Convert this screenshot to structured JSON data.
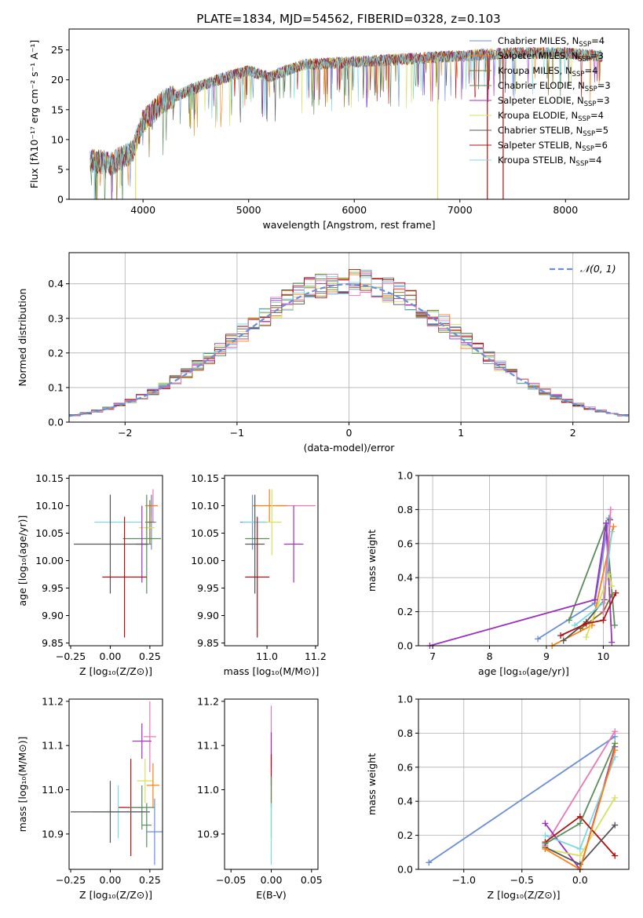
{
  "title": "PLATE=1834, MJD=54562, FIBERID=0328, z=0.103",
  "colors": {
    "cm": "#6b8fd6",
    "sm": "#ff7f0e",
    "km": "#8c6d1f",
    "ce": "#5b8c5b",
    "se": "#9b30c0",
    "ke": "#d8e060",
    "cs": "#555555",
    "ss": "#b01010",
    "ks": "#7dd8e0",
    "pink": "#e878b8",
    "gaussian": "#6b8fd6"
  },
  "chart_data": [
    {
      "id": "spectrum",
      "type": "line",
      "title": "PLATE=1834, MJD=54562, FIBERID=0328, z=0.103",
      "xlabel": "wavelength [Angstrom, rest frame]",
      "ylabel": "Flux [fλ10⁻¹⁷ erg cm⁻² s⁻¹ A⁻¹]",
      "xlim": [
        3300,
        8600
      ],
      "ylim": [
        0,
        28.5
      ],
      "xticks": [
        4000,
        5000,
        6000,
        7000,
        8000
      ],
      "yticks": [
        0,
        5,
        10,
        15,
        20,
        25
      ],
      "legend_position": "upper-right",
      "legend": [
        {
          "label": "Chabrier MILES, N",
          "sub": "SSP",
          "suffix": "=4",
          "color": "cm"
        },
        {
          "label": "Salpeter MILES, N",
          "sub": "SSP",
          "suffix": "=3",
          "color": "sm"
        },
        {
          "label": "Kroupa MILES, N",
          "sub": "SSP",
          "suffix": "=4",
          "color": "km"
        },
        {
          "label": "Chabrier ELODIE, N",
          "sub": "SSP",
          "suffix": "=3",
          "color": "ce"
        },
        {
          "label": "Salpeter ELODIE, N",
          "sub": "SSP",
          "suffix": "=3",
          "color": "se"
        },
        {
          "label": "Kroupa ELODIE, N",
          "sub": "SSP",
          "suffix": "=4",
          "color": "ke"
        },
        {
          "label": "Chabrier STELIB, N",
          "sub": "SSP",
          "suffix": "=5",
          "color": "cs"
        },
        {
          "label": "Salpeter STELIB, N",
          "sub": "SSP",
          "suffix": "=6",
          "color": "ss"
        },
        {
          "label": "Kroupa STELIB, N",
          "sub": "SSP",
          "suffix": "=4",
          "color": "ks"
        }
      ],
      "continuum": [
        [
          3500,
          6.5
        ],
        [
          3700,
          6.0
        ],
        [
          3900,
          8.0
        ],
        [
          4000,
          13.0
        ],
        [
          4200,
          16.5
        ],
        [
          4400,
          18.0
        ],
        [
          4700,
          20.0
        ],
        [
          5000,
          21.5
        ],
        [
          5200,
          20.5
        ],
        [
          5500,
          22.5
        ],
        [
          6000,
          23.0
        ],
        [
          6500,
          23.5
        ],
        [
          7000,
          24.0
        ],
        [
          7500,
          24.5
        ],
        [
          8000,
          24.5
        ],
        [
          8300,
          24.0
        ]
      ],
      "dropouts": [
        {
          "x": 3540,
          "color": "ks"
        },
        {
          "x": 3560,
          "color": "ce"
        },
        {
          "x": 3930,
          "color": "ke"
        },
        {
          "x": 6790,
          "color": "ke"
        },
        {
          "x": 7260,
          "color": "ss"
        },
        {
          "x": 7410,
          "color": "ss"
        }
      ]
    },
    {
      "id": "residuals",
      "type": "bar",
      "xlabel": "(data-model)/error",
      "ylabel": "Normed distribution",
      "xlim": [
        -2.5,
        2.5
      ],
      "ylim": [
        0,
        0.49
      ],
      "xticks": [
        -2,
        -1,
        0,
        1,
        2
      ],
      "yticks": [
        0.0,
        0.1,
        0.2,
        0.3,
        0.4
      ],
      "bin_width": 0.1,
      "legend": {
        "label": "𝒩(0, 1)",
        "position": "upper-right"
      }
    },
    {
      "id": "age-vs-z",
      "type": "scatter",
      "xlabel": "Z [log₁₀(Z/Z⊙)]",
      "ylabel": "age  [log₁₀(age/yr)]",
      "xlim": [
        -0.26,
        0.33
      ],
      "ylim": [
        9.845,
        10.155
      ],
      "xticks": [
        -0.25,
        0.0,
        0.25
      ],
      "xtick_labels": [
        "−0.25",
        "0.00",
        "0.25"
      ],
      "yticks": [
        9.85,
        9.9,
        9.95,
        10.0,
        10.05,
        10.1,
        10.15
      ],
      "points": [
        {
          "x": 0.27,
          "y": 10.1,
          "xe": 0.03,
          "ye": 0.03,
          "color": "pink"
        },
        {
          "x": 0.26,
          "y": 10.1,
          "xe": 0.04,
          "ye": 0.02,
          "color": "sm"
        },
        {
          "x": 0.26,
          "y": 10.07,
          "xe": 0.03,
          "ye": 0.05,
          "color": "cm"
        },
        {
          "x": 0.25,
          "y": 10.07,
          "xe": 0.03,
          "ye": 0.04,
          "color": "km"
        },
        {
          "x": 0.23,
          "y": 10.06,
          "xe": 0.05,
          "ye": 0.04,
          "color": "ke"
        },
        {
          "x": 0.05,
          "y": 10.07,
          "xe": 0.15,
          "ye": 0.0,
          "color": "ks"
        },
        {
          "x": 0.2,
          "y": 10.04,
          "xe": 0.12,
          "ye": 0.0,
          "color": "ce"
        },
        {
          "x": 0.23,
          "y": 10.03,
          "xe": 0.03,
          "ye": 0.09,
          "color": "ce"
        },
        {
          "x": 0.2,
          "y": 10.03,
          "xe": 0.04,
          "ye": 0.07,
          "color": "se"
        },
        {
          "x": 0.0,
          "y": 10.03,
          "xe": 0.23,
          "ye": 0.09,
          "color": "cs"
        },
        {
          "x": 0.09,
          "y": 9.97,
          "xe": 0.14,
          "ye": 0.11,
          "color": "ss"
        }
      ]
    },
    {
      "id": "age-vs-mass",
      "type": "scatter",
      "xlabel": "mass [log₁₀(M/M⊙)]",
      "ylabel": "",
      "xlim": [
        10.825,
        11.21
      ],
      "ylim": [
        9.845,
        10.155
      ],
      "xticks": [
        11.0,
        11.2
      ],
      "xtick_labels": [
        "11.0",
        "11.2"
      ],
      "yticks": [
        9.85,
        9.9,
        9.95,
        10.0,
        10.05,
        10.1,
        10.15
      ],
      "points": [
        {
          "x": 11.12,
          "y": 10.1,
          "xe": 0.08,
          "ye": 0.0,
          "color": "pink"
        },
        {
          "x": 11.01,
          "y": 10.1,
          "xe": 0.07,
          "ye": 0.03,
          "color": "sm"
        },
        {
          "x": 10.94,
          "y": 10.07,
          "xe": 0.05,
          "ye": 0.05,
          "color": "cm"
        },
        {
          "x": 11.02,
          "y": 10.07,
          "xe": 0.04,
          "ye": 0.06,
          "color": "ke"
        },
        {
          "x": 10.95,
          "y": 10.07,
          "xe": 0.05,
          "ye": 0.01,
          "color": "ks"
        },
        {
          "x": 10.96,
          "y": 10.04,
          "xe": 0.05,
          "ye": 0.0,
          "color": "ce"
        },
        {
          "x": 11.11,
          "y": 10.03,
          "xe": 0.04,
          "ye": 0.07,
          "color": "se"
        },
        {
          "x": 10.95,
          "y": 10.03,
          "xe": 0.04,
          "ye": 0.09,
          "color": "cs"
        },
        {
          "x": 10.96,
          "y": 9.97,
          "xe": 0.05,
          "ye": 0.11,
          "color": "ss"
        }
      ]
    },
    {
      "id": "weight-vs-age",
      "type": "line",
      "xlabel": "age  [log₁₀(age/yr)]",
      "ylabel": "mass weight",
      "xlim": [
        6.75,
        10.45
      ],
      "ylim": [
        0,
        1.0
      ],
      "xticks": [
        7,
        8,
        9,
        10
      ],
      "yticks": [
        0.0,
        0.2,
        0.4,
        0.6,
        0.8,
        1.0
      ],
      "series": [
        {
          "color": "cm",
          "x": [
            8.85,
            9.85,
            10.1
          ],
          "y": [
            0.04,
            0.25,
            0.75
          ]
        },
        {
          "color": "sm",
          "x": [
            9.1,
            9.8,
            10.18
          ],
          "y": [
            0.0,
            0.12,
            0.7
          ]
        },
        {
          "color": "km",
          "x": [
            9.6,
            10.0,
            10.15
          ],
          "y": [
            0.1,
            0.2,
            0.3
          ]
        },
        {
          "color": "ce",
          "x": [
            9.4,
            10.05,
            10.2
          ],
          "y": [
            0.15,
            0.72,
            0.12
          ]
        },
        {
          "color": "se",
          "x": [
            6.95,
            9.85,
            10.05,
            10.15
          ],
          "y": [
            0.0,
            0.27,
            0.72,
            0.02
          ]
        },
        {
          "color": "ke",
          "x": [
            9.7,
            10.1,
            10.15
          ],
          "y": [
            0.05,
            0.42,
            0.35
          ]
        },
        {
          "color": "cs",
          "x": [
            9.3,
            9.7,
            10.02,
            10.12
          ],
          "y": [
            0.03,
            0.14,
            0.27,
            0.74
          ]
        },
        {
          "color": "ss",
          "x": [
            9.25,
            9.7,
            10.0,
            10.22
          ],
          "y": [
            0.06,
            0.13,
            0.15,
            0.31
          ]
        },
        {
          "color": "ks",
          "x": [
            9.5,
            10.0,
            10.15
          ],
          "y": [
            0.12,
            0.25,
            0.67
          ]
        },
        {
          "color": "pink",
          "x": [
            10.0,
            10.13
          ],
          "y": [
            0.2,
            0.8
          ]
        }
      ]
    },
    {
      "id": "mass-vs-z",
      "type": "scatter",
      "xlabel": "Z [log₁₀(Z/Z⊙)]",
      "ylabel": "mass [log₁₀(M/M⊙)]",
      "xlim": [
        -0.26,
        0.33
      ],
      "ylim": [
        10.82,
        11.205
      ],
      "xticks": [
        -0.25,
        0.0,
        0.25
      ],
      "xtick_labels": [
        "−0.25",
        "0.00",
        "0.25"
      ],
      "yticks": [
        10.9,
        11.0,
        11.1,
        11.2
      ],
      "points": [
        {
          "x": 0.25,
          "y": 11.12,
          "xe": 0.04,
          "ye": 0.08,
          "color": "pink"
        },
        {
          "x": 0.2,
          "y": 11.11,
          "xe": 0.06,
          "ye": 0.04,
          "color": "se"
        },
        {
          "x": 0.22,
          "y": 11.02,
          "xe": 0.05,
          "ye": 0.05,
          "color": "ke"
        },
        {
          "x": 0.27,
          "y": 11.01,
          "xe": 0.04,
          "ye": 0.05,
          "color": "sm"
        },
        {
          "x": 0.13,
          "y": 10.96,
          "xe": 0.08,
          "ye": 0.11,
          "color": "ss"
        },
        {
          "x": 0.2,
          "y": 10.96,
          "xe": 0.08,
          "ye": 0.05,
          "color": "ce"
        },
        {
          "x": 0.05,
          "y": 10.95,
          "xe": 0.16,
          "ye": 0.06,
          "color": "ks"
        },
        {
          "x": 0.0,
          "y": 10.95,
          "xe": 0.25,
          "ye": 0.07,
          "color": "cs"
        },
        {
          "x": 0.23,
          "y": 10.92,
          "xe": 0.03,
          "ye": 0.05,
          "color": "ce"
        },
        {
          "x": 0.28,
          "y": 10.905,
          "xe": 0.05,
          "ye": 0.075,
          "color": "cm"
        }
      ]
    },
    {
      "id": "mass-vs-ebv",
      "type": "scatter",
      "xlabel": "E(B-V)",
      "ylabel": "",
      "xlim": [
        -0.058,
        0.058
      ],
      "ylim": [
        10.82,
        11.205
      ],
      "xticks": [
        -0.05,
        0.0,
        0.05
      ],
      "xtick_labels": [
        "−0.05",
        "0.00",
        "0.05"
      ],
      "yticks": [
        10.9,
        11.0,
        11.1,
        11.2
      ],
      "points": [
        {
          "x": 0.0,
          "y": 11.12,
          "xe": 0,
          "ye": 0.07,
          "color": "pink"
        },
        {
          "x": 0.0,
          "y": 11.07,
          "xe": 0,
          "ye": 0.06,
          "color": "se"
        },
        {
          "x": 0.0,
          "y": 11.02,
          "xe": 0,
          "ye": 0.06,
          "color": "ss"
        },
        {
          "x": 0.0,
          "y": 10.96,
          "xe": 0,
          "ye": 0.07,
          "color": "ce"
        },
        {
          "x": 0.0,
          "y": 10.9,
          "xe": 0,
          "ye": 0.07,
          "color": "ks"
        }
      ]
    },
    {
      "id": "weight-vs-z",
      "type": "line",
      "xlabel": "Z [log₁₀(Z/Z⊙)]",
      "ylabel": "mass weight",
      "xlim": [
        -1.39,
        0.42
      ],
      "ylim": [
        0,
        1.0
      ],
      "xticks": [
        -1.0,
        -0.5,
        0.0
      ],
      "xtick_labels": [
        "−1.0",
        "−0.5",
        "0.0"
      ],
      "yticks": [
        0.0,
        0.2,
        0.4,
        0.6,
        0.8,
        1.0
      ],
      "series": [
        {
          "color": "cm",
          "x": [
            -1.3,
            0.3
          ],
          "y": [
            0.04,
            0.78
          ]
        },
        {
          "color": "pink",
          "x": [
            -0.3,
            0.3
          ],
          "y": [
            0.14,
            0.81
          ]
        },
        {
          "color": "se",
          "x": [
            -0.3,
            0.0,
            0.3
          ],
          "y": [
            0.27,
            0.0,
            0.72
          ]
        },
        {
          "color": "ke",
          "x": [
            -0.3,
            0.0,
            0.3
          ],
          "y": [
            0.12,
            0.08,
            0.42
          ]
        },
        {
          "color": "ks",
          "x": [
            -0.3,
            0.0,
            0.3
          ],
          "y": [
            0.2,
            0.12,
            0.66
          ]
        },
        {
          "color": "ss",
          "x": [
            -0.3,
            0.0,
            0.3
          ],
          "y": [
            0.16,
            0.31,
            0.08
          ]
        },
        {
          "color": "ce",
          "x": [
            -0.3,
            0.0,
            0.3
          ],
          "y": [
            0.15,
            0.27,
            0.74
          ]
        },
        {
          "color": "cs",
          "x": [
            -0.3,
            0.0,
            0.3
          ],
          "y": [
            0.13,
            0.03,
            0.26
          ]
        },
        {
          "color": "sm",
          "x": [
            -0.3,
            0.0,
            0.3
          ],
          "y": [
            0.12,
            0.0,
            0.7
          ]
        }
      ]
    }
  ]
}
